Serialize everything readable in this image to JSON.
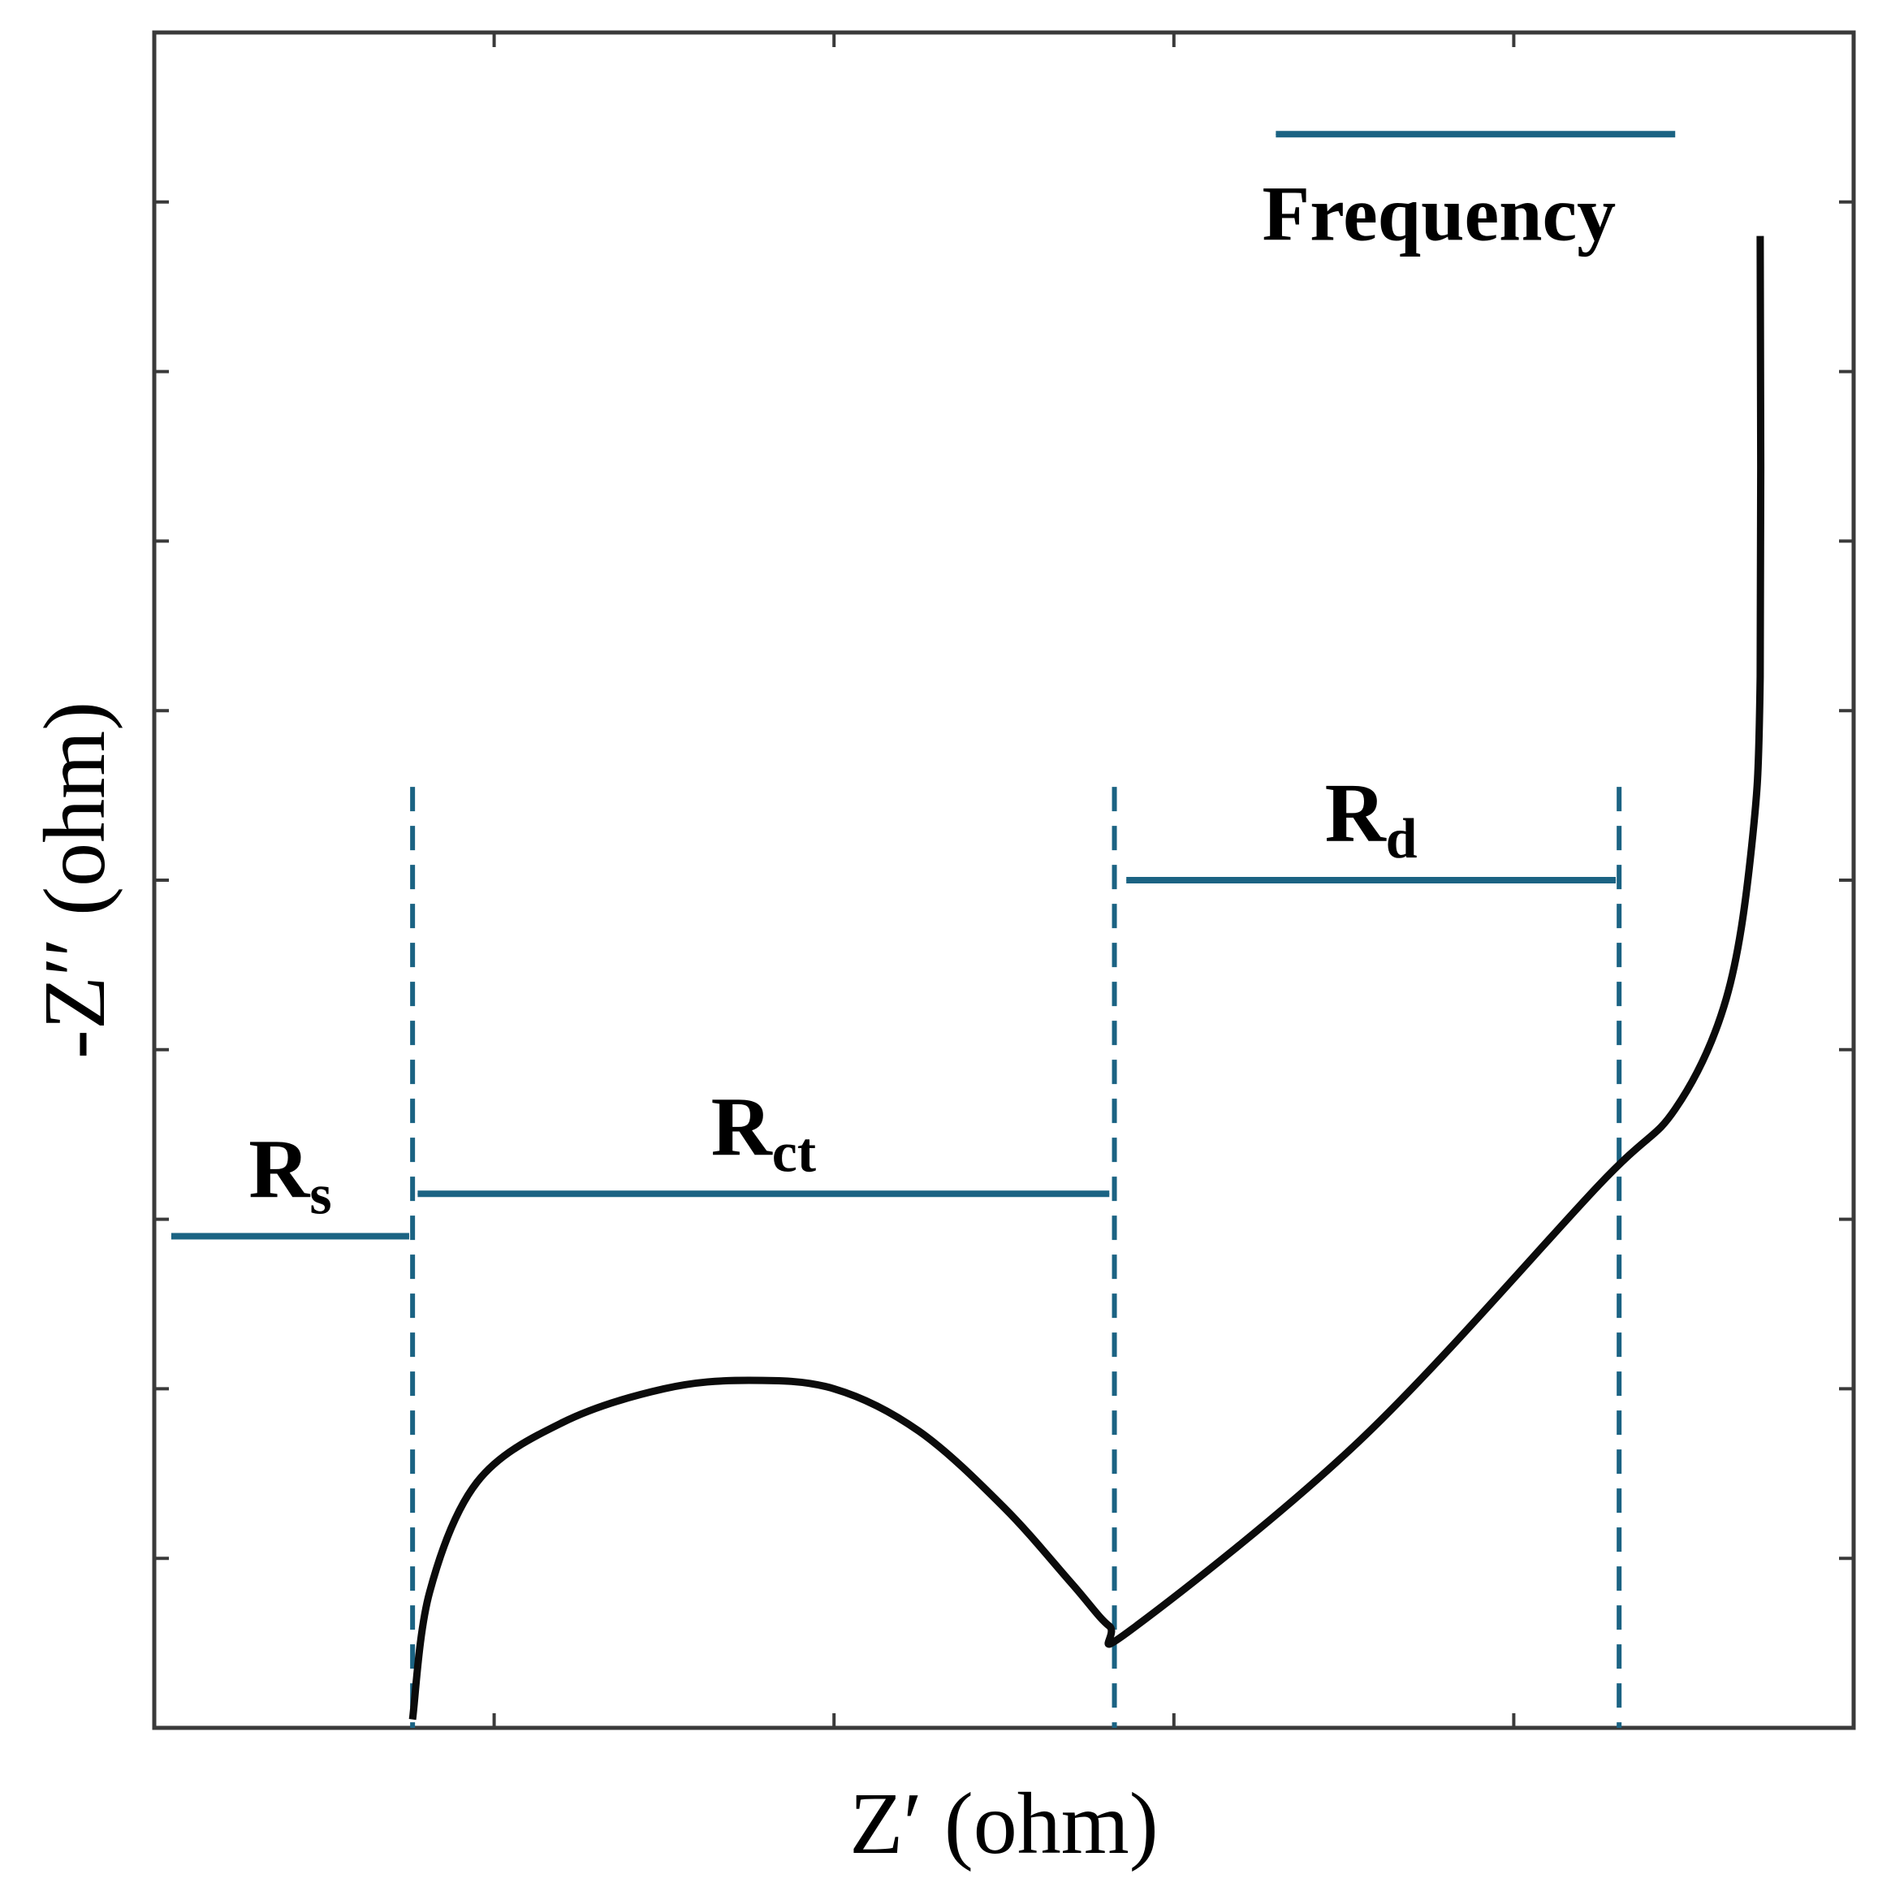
{
  "chart_data": {
    "type": "line",
    "title": "",
    "xlabel": "Z′ (ohm)",
    "ylabel": "-Z′′ (ohm)",
    "xlim": [
      0,
      10
    ],
    "ylim": [
      0,
      10
    ],
    "x_tick_count": 5,
    "y_tick_count": 11,
    "tick_labels_shown": false,
    "grid": false,
    "legend": "none",
    "series": [
      {
        "name": "",
        "color": "#0b0b0b",
        "x": [
          1.52,
          1.62,
          1.9,
          2.4,
          3.0,
          3.5,
          4.0,
          4.5,
          5.0,
          5.4,
          5.62,
          5.75,
          7.1,
          8.5,
          8.95,
          9.25,
          9.4,
          9.45,
          9.45
        ],
        "y": [
          0.05,
          0.8,
          1.45,
          1.8,
          2.0,
          2.05,
          2.0,
          1.75,
          1.3,
          0.85,
          0.6,
          0.58,
          1.7,
          3.2,
          3.65,
          4.3,
          5.2,
          6.2,
          8.8
        ]
      }
    ],
    "markers": {
      "color": "#1b6383",
      "dashed_lines_x": [
        1.52,
        5.65,
        8.62
      ],
      "dashed_top_y": 5.55,
      "spans": [
        {
          "label": "R",
          "subscript": "s",
          "x_start": 0.1,
          "x_end": 1.5,
          "y": 2.9
        },
        {
          "label": "R",
          "subscript": "ct",
          "x_start": 1.55,
          "x_end": 5.62,
          "y": 3.15
        },
        {
          "label": "R",
          "subscript": "d",
          "x_start": 5.72,
          "x_end": 8.6,
          "y": 5.0
        }
      ],
      "direction_arrow": {
        "label": "Frequency",
        "x_start": 8.95,
        "x_end": 6.6,
        "y": 9.4
      }
    }
  }
}
